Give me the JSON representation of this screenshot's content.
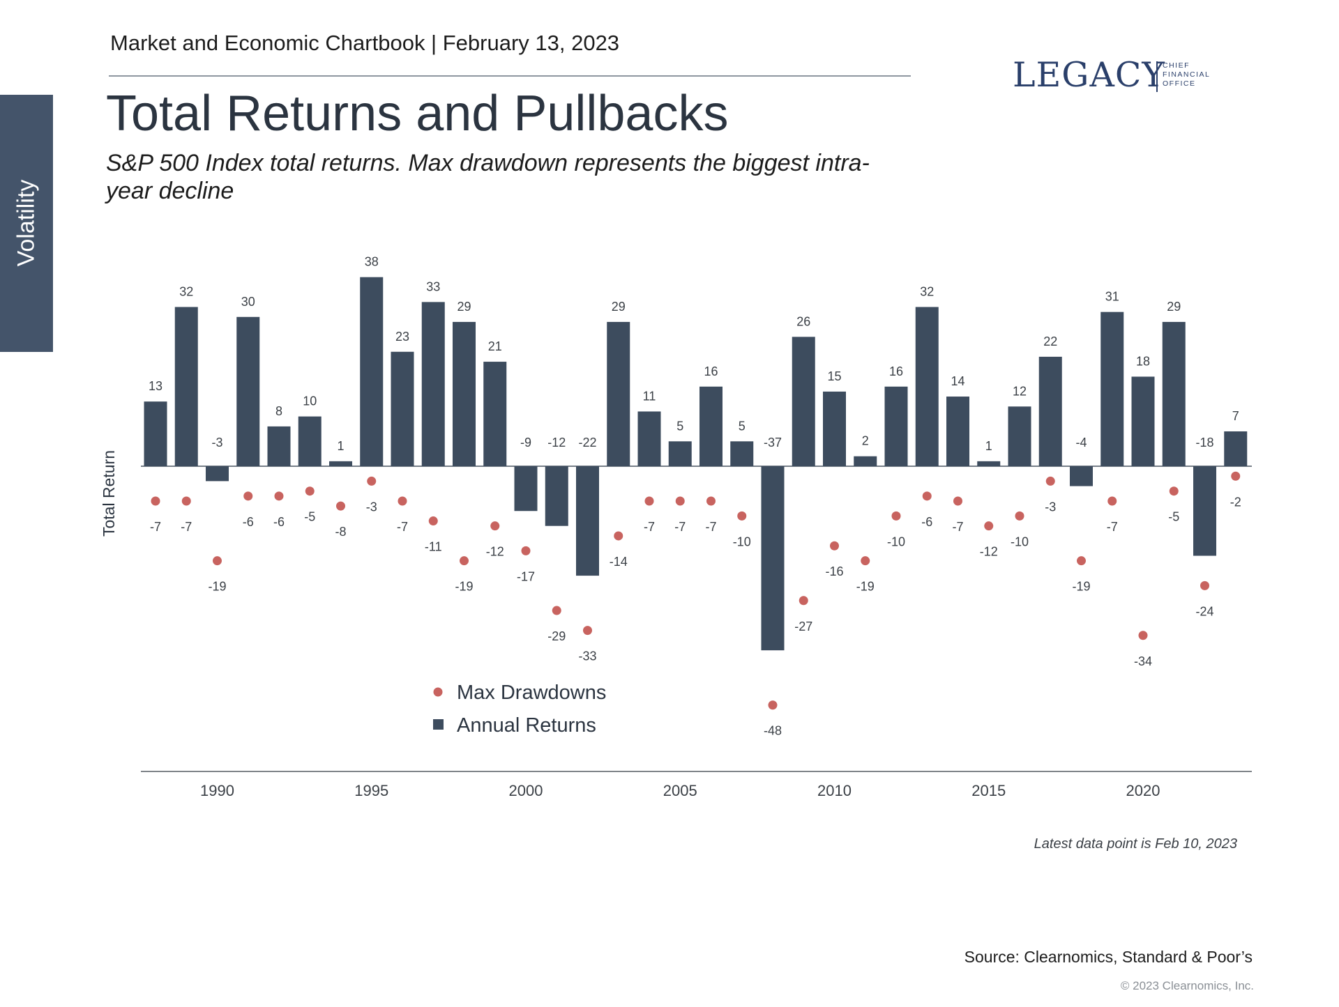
{
  "header": {
    "line": "Market and Economic Chartbook | February 13, 2023"
  },
  "side_tab": {
    "label": "Volatility"
  },
  "logo": {
    "name": "LEGACY",
    "sub1": "CHIEF",
    "sub2": "FINANCIAL",
    "sub3": "OFFICE"
  },
  "title": "Total Returns and Pullbacks",
  "subtitle": "S&P 500 Index total returns. Max drawdown represents the biggest intra-year decline",
  "note": "Latest data point is Feb 10, 2023",
  "source": "Source: Clearnomics, Standard & Poor’s",
  "copyright": "© 2023 Clearnomics, Inc.",
  "colors": {
    "bar": "#3d4c5e",
    "dot": "#c8635f",
    "axis": "#555b62"
  },
  "chart_data": {
    "type": "bar",
    "title": "Total Returns and Pullbacks",
    "ylabel": "Total Return",
    "xlabel": "",
    "ylim": [
      -48,
      38
    ],
    "x_tick_labels": [
      "1990",
      "1995",
      "2000",
      "2005",
      "2010",
      "2015",
      "2020"
    ],
    "legend": {
      "position": "bottom-left",
      "entries": [
        "Max Drawdowns",
        "Annual Returns"
      ]
    },
    "categories": [
      1988,
      1989,
      1990,
      1991,
      1992,
      1993,
      1994,
      1995,
      1996,
      1997,
      1998,
      1999,
      2000,
      2001,
      2002,
      2003,
      2004,
      2005,
      2006,
      2007,
      2008,
      2009,
      2010,
      2011,
      2012,
      2013,
      2014,
      2015,
      2016,
      2017,
      2018,
      2019,
      2020,
      2021,
      2022,
      2023
    ],
    "series": [
      {
        "name": "Annual Returns",
        "type": "bar",
        "values": [
          13,
          32,
          -3,
          30,
          8,
          10,
          1,
          38,
          23,
          33,
          29,
          21,
          -9,
          -12,
          -22,
          29,
          11,
          5,
          16,
          5,
          -37,
          26,
          15,
          2,
          16,
          32,
          14,
          1,
          12,
          22,
          -4,
          31,
          18,
          29,
          -18,
          7
        ]
      },
      {
        "name": "Max Drawdowns",
        "type": "scatter",
        "values": [
          -7,
          -7,
          -19,
          -6,
          -6,
          -5,
          -8,
          -3,
          -7,
          -11,
          -19,
          -12,
          -17,
          -29,
          -33,
          -14,
          -7,
          -7,
          -7,
          -10,
          -48,
          -27,
          -16,
          -19,
          -10,
          -6,
          -7,
          -12,
          -10,
          -3,
          -19,
          -7,
          -34,
          -5,
          -24,
          -2
        ]
      }
    ]
  }
}
